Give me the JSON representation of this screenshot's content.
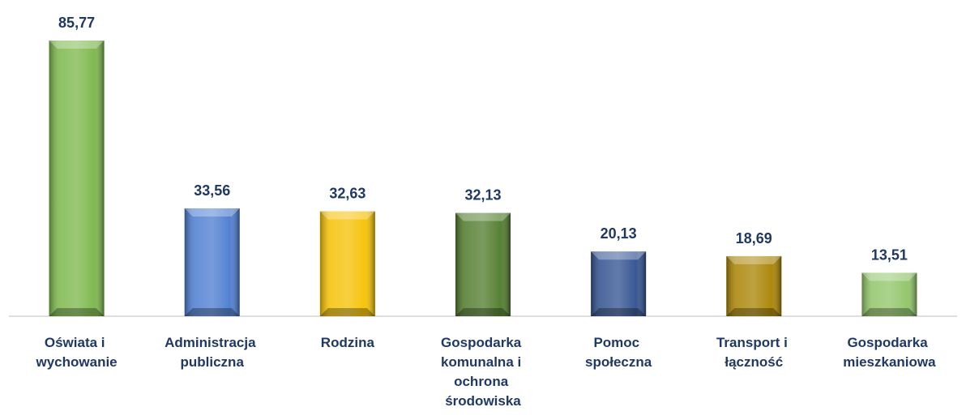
{
  "chart_data": {
    "type": "bar",
    "categories": [
      "Oświata i wychowanie",
      "Administracja publiczna",
      "Rodzina",
      "Gospodarka komunalna i ochrona środowiska",
      "Pomoc społeczna",
      "Transport i łączność",
      "Gospodarka mieszkaniowa"
    ],
    "values": [
      85.77,
      33.56,
      32.63,
      32.13,
      20.13,
      18.69,
      13.51
    ],
    "value_labels": [
      "85,77",
      "33,56",
      "32,63",
      "32,13",
      "20,13",
      "18,69",
      "13,51"
    ],
    "colors": [
      "#7ab648",
      "#4a7bd0",
      "#f5c000",
      "#4e7a2a",
      "#2f4f8f",
      "#a88200",
      "#8fc467"
    ]
  }
}
